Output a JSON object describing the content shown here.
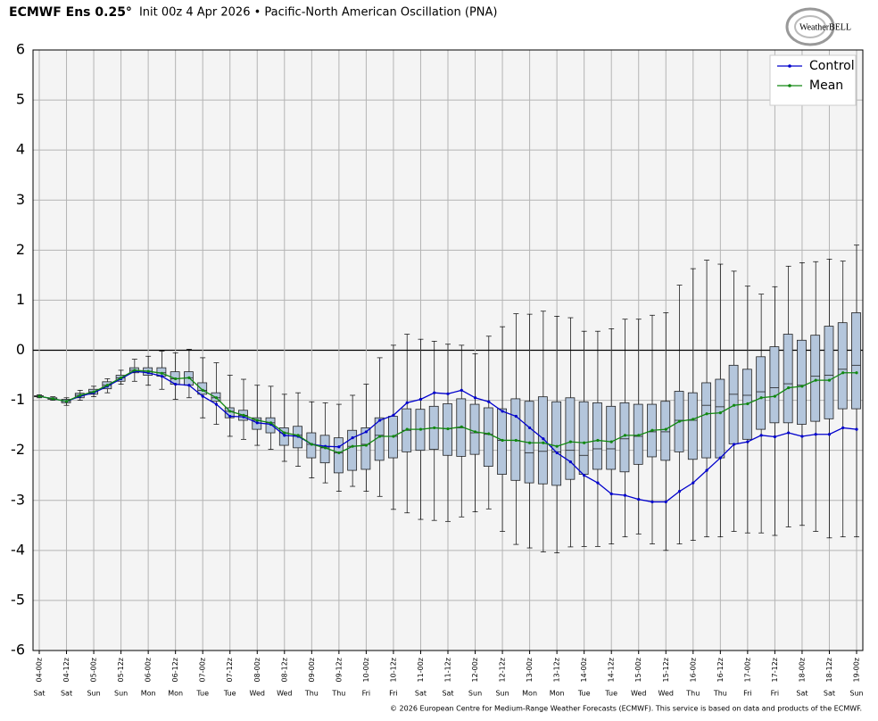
{
  "chart_data": {
    "type": "boxplot",
    "title": "ECMWF Ens 0.25°",
    "subtitle": "Init 00z 4 Apr 2026 • Pacific-North American Oscillation (PNA)",
    "logo": "WeatherBELL",
    "credit": "© 2026 European Centre for Medium-Range Weather Forecasts (ECMWF). This service is based on data and products of the ECMWF.",
    "categories": [
      "04-00z",
      null,
      "04-12z",
      null,
      "05-00z",
      null,
      "05-12z",
      null,
      "06-00z",
      null,
      "06-12z",
      null,
      "07-00z",
      null,
      "07-12z",
      null,
      "08-00z",
      null,
      "08-12z",
      null,
      "09-00z",
      null,
      "09-12z",
      null,
      "10-00z",
      null,
      "10-12z",
      null,
      "11-00z",
      null,
      "11-12z",
      null,
      "12-00z",
      null,
      "12-12z",
      null,
      "13-00z",
      null,
      "13-12z",
      null,
      "14-00z",
      null,
      "14-12z",
      null,
      "15-00z",
      null,
      "15-12z",
      null,
      "16-00z",
      null,
      "16-12z",
      null,
      "17-00z",
      null,
      "17-12z",
      null,
      "18-00z",
      null,
      "18-12z",
      null,
      "19-00z"
    ],
    "day_labels": [
      "Sat",
      null,
      "Sat",
      null,
      "Sun",
      null,
      "Sun",
      null,
      "Mon",
      null,
      "Mon",
      null,
      "Tue",
      null,
      "Tue",
      null,
      "Wed",
      null,
      "Wed",
      null,
      "Thu",
      null,
      "Thu",
      null,
      "Fri",
      null,
      "Fri",
      null,
      "Sat",
      null,
      "Sat",
      null,
      "Sun",
      null,
      "Sun",
      null,
      "Mon",
      null,
      "Mon",
      null,
      "Tue",
      null,
      "Tue",
      null,
      "Wed",
      null,
      "Wed",
      null,
      "Thu",
      null,
      "Thu",
      null,
      "Fri",
      null,
      "Fri",
      null,
      "Sat",
      null,
      "Sat",
      null,
      "Sun"
    ],
    "boxes": {
      "color": "#b4c6dc",
      "min": [
        -0.95,
        -1.0,
        -1.1,
        -1.0,
        -0.93,
        -0.85,
        -0.68,
        -0.62,
        -0.7,
        -0.78,
        -0.98,
        -0.95,
        -1.35,
        -1.48,
        -1.72,
        -1.78,
        -1.9,
        -1.98,
        -2.22,
        -2.32,
        -2.55,
        -2.65,
        -2.82,
        -2.72,
        -2.82,
        -2.92,
        -3.18,
        -3.25,
        -3.38,
        -3.4,
        -3.42,
        -3.33,
        -3.23,
        -3.17,
        -3.62,
        -3.88,
        -3.95,
        -4.03,
        -4.05,
        -3.93,
        -3.92,
        -3.92,
        -3.87,
        -3.73,
        -3.67,
        -3.87,
        -4.0,
        -3.87,
        -3.8,
        -3.73,
        -3.73,
        -3.62,
        -3.65,
        -3.65,
        -3.7,
        -3.53,
        -3.5,
        -3.62,
        -3.75,
        -3.73,
        -3.73
      ],
      "q1": [
        -0.93,
        -0.98,
        -1.05,
        -0.95,
        -0.88,
        -0.77,
        -0.62,
        -0.45,
        -0.5,
        -0.52,
        -0.68,
        -0.7,
        -0.88,
        -1.02,
        -1.35,
        -1.4,
        -1.58,
        -1.65,
        -1.9,
        -1.95,
        -2.15,
        -2.25,
        -2.45,
        -2.4,
        -2.38,
        -2.2,
        -2.15,
        -2.03,
        -2.0,
        -1.98,
        -2.1,
        -2.12,
        -2.08,
        -2.32,
        -2.48,
        -2.6,
        -2.65,
        -2.67,
        -2.7,
        -2.58,
        -2.48,
        -2.38,
        -2.38,
        -2.43,
        -2.28,
        -2.13,
        -2.2,
        -2.03,
        -2.18,
        -2.15,
        -2.15,
        -1.87,
        -1.78,
        -1.58,
        -1.45,
        -1.45,
        -1.48,
        -1.42,
        -1.37,
        -1.17,
        -1.17
      ],
      "median": [
        -0.92,
        -0.97,
        -1.02,
        -0.9,
        -0.83,
        -0.7,
        -0.55,
        -0.4,
        -0.42,
        -0.45,
        -0.57,
        -0.55,
        -0.8,
        -0.95,
        -1.22,
        -1.3,
        -1.4,
        -1.45,
        -1.65,
        -1.7,
        -1.88,
        -1.95,
        -2.05,
        -1.92,
        -1.88,
        -1.7,
        -1.72,
        -1.6,
        -1.58,
        -1.55,
        -1.57,
        -1.55,
        -1.65,
        -1.68,
        -1.8,
        -1.8,
        -2.05,
        -2.02,
        -2.03,
        -2.0,
        -2.1,
        -1.97,
        -1.97,
        -1.77,
        -1.72,
        -1.63,
        -1.63,
        -1.4,
        -1.4,
        -1.1,
        -1.13,
        -0.88,
        -0.9,
        -0.83,
        -0.75,
        -0.67,
        -0.7,
        -0.52,
        -0.5,
        -0.38,
        -0.3
      ],
      "q3": [
        -0.91,
        -0.95,
        -0.98,
        -0.86,
        -0.78,
        -0.63,
        -0.5,
        -0.35,
        -0.35,
        -0.35,
        -0.43,
        -0.43,
        -0.65,
        -0.85,
        -1.15,
        -1.2,
        -1.35,
        -1.35,
        -1.55,
        -1.52,
        -1.65,
        -1.7,
        -1.75,
        -1.6,
        -1.55,
        -1.35,
        -1.32,
        -1.17,
        -1.18,
        -1.12,
        -1.07,
        -0.97,
        -1.08,
        -1.15,
        -1.17,
        -0.97,
        -1.02,
        -0.93,
        -1.03,
        -0.95,
        -1.03,
        -1.05,
        -1.12,
        -1.05,
        -1.08,
        -1.08,
        -1.02,
        -0.82,
        -0.85,
        -0.65,
        -0.58,
        -0.3,
        -0.38,
        -0.13,
        0.07,
        0.32,
        0.2,
        0.3,
        0.48,
        0.55,
        0.75
      ],
      "max": [
        -0.89,
        -0.93,
        -0.95,
        -0.8,
        -0.72,
        -0.57,
        -0.4,
        -0.18,
        -0.12,
        -0.02,
        -0.05,
        0.02,
        -0.15,
        -0.25,
        -0.5,
        -0.58,
        -0.7,
        -0.72,
        -0.88,
        -0.85,
        -1.03,
        -1.05,
        -1.08,
        -0.9,
        -0.68,
        -0.15,
        0.1,
        0.32,
        0.22,
        0.18,
        0.12,
        0.1,
        -0.07,
        0.28,
        0.47,
        0.73,
        0.72,
        0.78,
        0.68,
        0.65,
        0.38,
        0.38,
        0.43,
        0.62,
        0.62,
        0.7,
        0.75,
        1.3,
        1.63,
        1.8,
        1.72,
        1.58,
        1.28,
        1.12,
        1.27,
        1.68,
        1.75,
        1.77,
        1.82,
        1.78,
        2.1
      ]
    },
    "series": [
      {
        "name": "Control",
        "color": "#0000cc",
        "values": [
          -0.92,
          -0.97,
          -1.02,
          -0.92,
          -0.85,
          -0.72,
          -0.57,
          -0.42,
          -0.45,
          -0.52,
          -0.68,
          -0.7,
          -0.92,
          -1.08,
          -1.32,
          -1.33,
          -1.45,
          -1.48,
          -1.7,
          -1.72,
          -1.88,
          -1.92,
          -1.93,
          -1.75,
          -1.63,
          -1.4,
          -1.3,
          -1.05,
          -0.98,
          -0.85,
          -0.87,
          -0.8,
          -0.95,
          -1.03,
          -1.22,
          -1.32,
          -1.55,
          -1.77,
          -2.05,
          -2.23,
          -2.5,
          -2.65,
          -2.87,
          -2.9,
          -2.98,
          -3.03,
          -3.03,
          -2.82,
          -2.65,
          -2.4,
          -2.15,
          -1.88,
          -1.83,
          -1.7,
          -1.73,
          -1.65,
          -1.72,
          -1.68,
          -1.68,
          -1.55,
          -1.58
        ]
      },
      {
        "name": "Mean",
        "color": "#118811",
        "values": [
          -0.92,
          -0.97,
          -1.02,
          -0.9,
          -0.83,
          -0.7,
          -0.55,
          -0.4,
          -0.42,
          -0.46,
          -0.57,
          -0.55,
          -0.8,
          -0.95,
          -1.22,
          -1.3,
          -1.4,
          -1.45,
          -1.65,
          -1.7,
          -1.88,
          -1.95,
          -2.05,
          -1.92,
          -1.9,
          -1.72,
          -1.72,
          -1.58,
          -1.58,
          -1.55,
          -1.57,
          -1.53,
          -1.63,
          -1.67,
          -1.8,
          -1.8,
          -1.85,
          -1.85,
          -1.92,
          -1.83,
          -1.85,
          -1.8,
          -1.83,
          -1.7,
          -1.7,
          -1.6,
          -1.58,
          -1.42,
          -1.38,
          -1.27,
          -1.25,
          -1.1,
          -1.07,
          -0.95,
          -0.92,
          -0.75,
          -0.72,
          -0.6,
          -0.6,
          -0.45,
          -0.45
        ]
      }
    ],
    "ylim": [
      -6,
      6
    ],
    "yticks": [
      -6,
      -5,
      -4,
      -3,
      -2,
      -1,
      0,
      1,
      2,
      3,
      4,
      5,
      6
    ],
    "grid": true,
    "legend": "upper right"
  }
}
